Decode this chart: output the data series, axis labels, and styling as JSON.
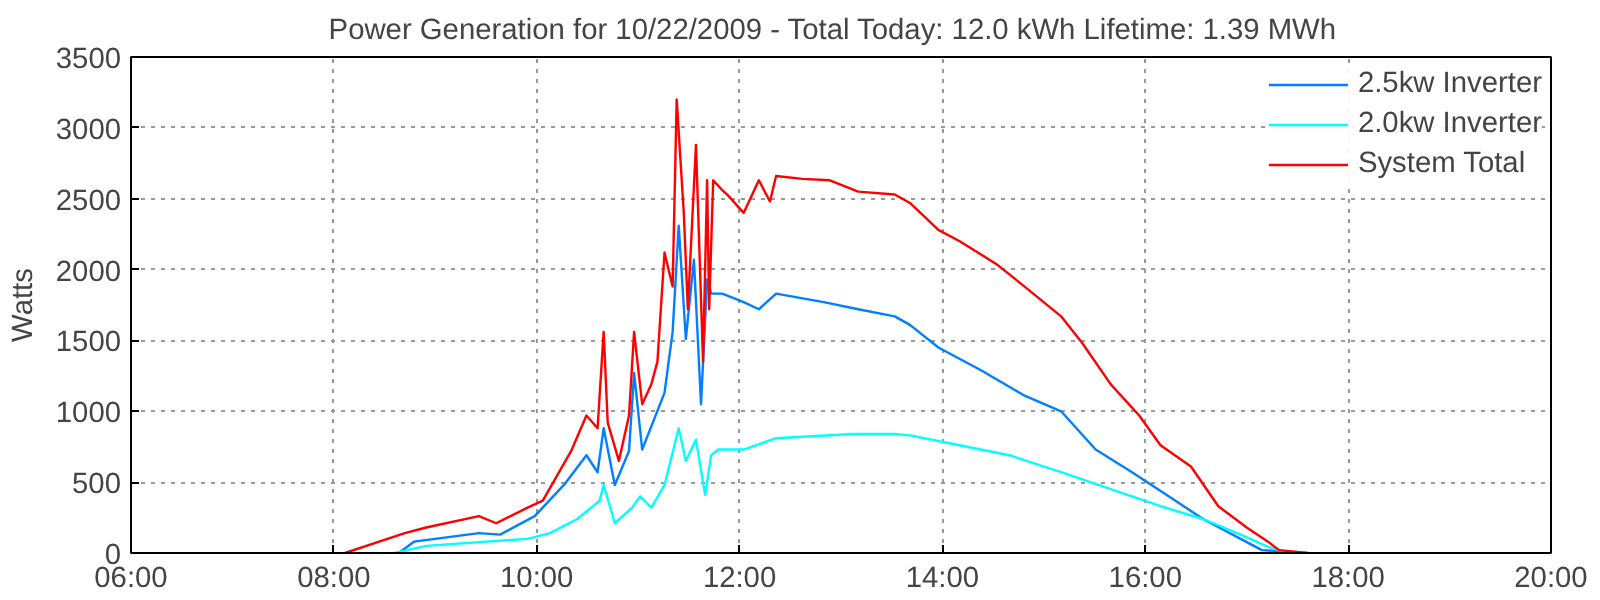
{
  "chart_data": {
    "type": "line",
    "title": "Power Generation for 10/22/2009 - Total Today: 12.0 kWh   Lifetime: 1.39 MWh",
    "ylabel": "Watts",
    "xlim": [
      6,
      20
    ],
    "xticks": [
      {
        "value": 6,
        "label": "06:00"
      },
      {
        "value": 8,
        "label": "08:00"
      },
      {
        "value": 10,
        "label": "10:00"
      },
      {
        "value": 12,
        "label": "12:00"
      },
      {
        "value": 14,
        "label": "14:00"
      },
      {
        "value": 16,
        "label": "16:00"
      },
      {
        "value": 18,
        "label": "18:00"
      },
      {
        "value": 20,
        "label": "20:00"
      }
    ],
    "ylim": [
      0,
      3500
    ],
    "yticks": [
      0,
      500,
      1000,
      1500,
      2000,
      2500,
      3000,
      3500
    ],
    "grid": true,
    "legend": "top right",
    "line_style": "solid",
    "marker": "none",
    "series": [
      {
        "name": "2.5kw Inverter",
        "color": "#0080ff",
        "x": [
          8.64,
          8.79,
          9.43,
          9.64,
          9.98,
          10.28,
          10.49,
          10.6,
          10.66,
          10.77,
          10.91,
          10.96,
          11.04,
          11.26,
          11.34,
          11.4,
          11.47,
          11.55,
          11.62,
          11.68,
          11.72,
          11.83,
          12.04,
          12.19,
          12.36,
          12.83,
          13.17,
          13.53,
          13.68,
          13.96,
          14.38,
          14.81,
          15.17,
          15.51,
          15.87,
          16.23,
          16.57,
          16.94,
          17.15,
          17.6
        ],
        "values": [
          0,
          80,
          140,
          130,
          260,
          490,
          690,
          570,
          880,
          480,
          720,
          1270,
          730,
          1130,
          1560,
          2310,
          1510,
          2070,
          1050,
          1930,
          1830,
          1830,
          1770,
          1720,
          1830,
          1770,
          1720,
          1670,
          1610,
          1450,
          1290,
          1110,
          1000,
          730,
          570,
          400,
          240,
          100,
          20,
          0
        ]
      },
      {
        "name": "2.0kw Inverter",
        "color": "#00ffff",
        "x": [
          8.6,
          8.91,
          9.91,
          10.13,
          10.4,
          10.62,
          10.66,
          10.77,
          10.94,
          11.02,
          11.13,
          11.26,
          11.4,
          11.47,
          11.57,
          11.66,
          11.72,
          11.79,
          12.04,
          12.36,
          13.11,
          13.53,
          13.68,
          14.17,
          14.66,
          15.17,
          15.66,
          16.15,
          16.57,
          16.94,
          17.19,
          17.4
        ],
        "values": [
          0,
          50,
          100,
          140,
          240,
          370,
          480,
          210,
          320,
          400,
          320,
          480,
          880,
          650,
          800,
          410,
          690,
          730,
          730,
          810,
          840,
          840,
          830,
          760,
          690,
          570,
          450,
          330,
          240,
          130,
          50,
          0
        ]
      },
      {
        "name": "System Total",
        "color": "#ff0000",
        "x": [
          8.11,
          8.7,
          8.91,
          9.43,
          9.6,
          9.91,
          10.06,
          10.34,
          10.49,
          10.6,
          10.66,
          10.7,
          10.81,
          10.91,
          10.96,
          11.04,
          11.13,
          11.19,
          11.26,
          11.34,
          11.38,
          11.45,
          11.49,
          11.57,
          11.64,
          11.68,
          11.7,
          11.74,
          11.83,
          11.89,
          12.04,
          12.19,
          12.3,
          12.36,
          12.62,
          12.89,
          13.17,
          13.53,
          13.68,
          13.96,
          14.17,
          14.53,
          14.81,
          15.17,
          15.38,
          15.66,
          15.94,
          16.15,
          16.45,
          16.72,
          17.0,
          17.21,
          17.32,
          17.6
        ],
        "values": [
          0,
          140,
          180,
          260,
          210,
          320,
          370,
          720,
          970,
          880,
          1560,
          920,
          650,
          970,
          1560,
          1050,
          1190,
          1350,
          2120,
          1880,
          3200,
          2400,
          1720,
          2880,
          1350,
          2630,
          1720,
          2630,
          2560,
          2520,
          2400,
          2630,
          2480,
          2660,
          2640,
          2630,
          2550,
          2530,
          2470,
          2280,
          2200,
          2040,
          1880,
          1670,
          1480,
          1190,
          970,
          760,
          610,
          330,
          180,
          80,
          20,
          0
        ]
      }
    ]
  }
}
